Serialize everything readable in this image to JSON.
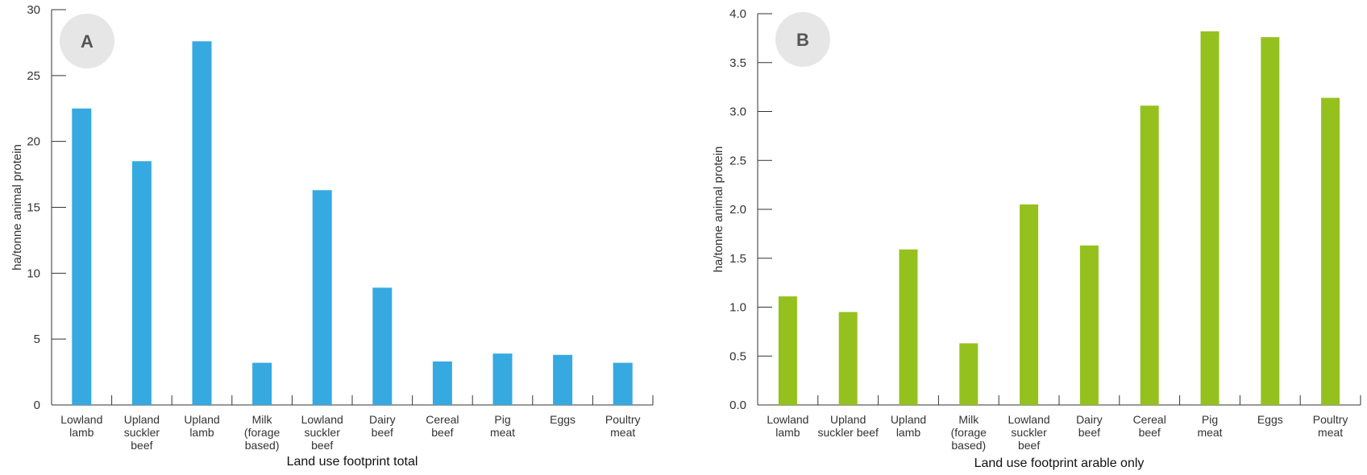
{
  "chart_data": [
    {
      "type": "bar",
      "panel_label": "A",
      "xlabel": "Land use footprint total",
      "ylabel": "ha/tonne animal protein",
      "ylim": [
        0,
        30
      ],
      "yticks": [
        "0",
        "5",
        "10",
        "15",
        "20",
        "25",
        "30"
      ],
      "categories": [
        [
          "Lowland",
          "lamb"
        ],
        [
          "Upland",
          "suckler",
          "beef"
        ],
        [
          "Upland",
          "lamb"
        ],
        [
          "Milk",
          "(forage",
          "based)"
        ],
        [
          "Lowland",
          "suckler",
          "beef"
        ],
        [
          "Dairy",
          "beef"
        ],
        [
          "Cereal",
          "beef"
        ],
        [
          "Pig",
          "meat"
        ],
        [
          "Eggs"
        ],
        [
          "Poultry",
          "meat"
        ]
      ],
      "values": [
        22.5,
        18.5,
        27.6,
        3.2,
        16.3,
        8.9,
        3.3,
        3.9,
        3.8,
        3.2
      ],
      "color": "#36a9e1",
      "grid": false
    },
    {
      "type": "bar",
      "panel_label": "B",
      "xlabel": "Land use footprint arable only",
      "ylabel": "ha/tonne animal protein",
      "ylim": [
        0,
        4.0
      ],
      "yticks": [
        "0.0",
        "0.5",
        "1.0",
        "1.5",
        "2.0",
        "2.5",
        "3.0",
        "3.5",
        "4.0"
      ],
      "categories": [
        [
          "Lowland",
          "lamb"
        ],
        [
          "Upland",
          "suckler beef"
        ],
        [
          "Upland",
          "lamb"
        ],
        [
          "Milk",
          "(forage",
          "based)"
        ],
        [
          "Lowland",
          "suckler",
          "beef"
        ],
        [
          "Dairy",
          "beef"
        ],
        [
          "Cereal",
          "beef"
        ],
        [
          "Pig",
          "meat"
        ],
        [
          "Eggs"
        ],
        [
          "Poultry",
          "meat"
        ]
      ],
      "values": [
        1.11,
        0.95,
        1.59,
        0.63,
        2.05,
        1.63,
        3.06,
        3.82,
        3.76,
        3.14
      ],
      "color": "#95c11f",
      "grid": false
    }
  ],
  "colors": {
    "badge_bg": "#e6e6e6",
    "axis": "#333333"
  }
}
